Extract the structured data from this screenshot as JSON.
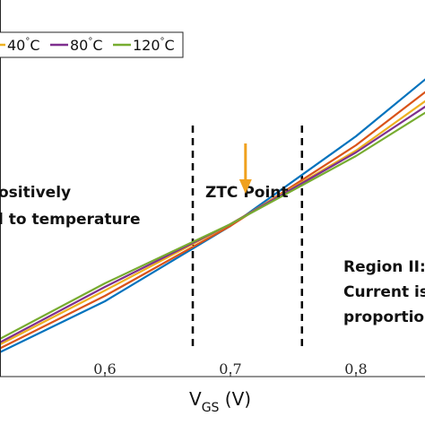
{
  "chart_data": {
    "type": "line",
    "xlabel": "V",
    "xlabel_sub": "GS",
    "xlabel_unit": " (V)",
    "xlim": [
      0.5,
      0.88
    ],
    "ylim": [
      0,
      1
    ],
    "x_ticks": [
      0.6,
      0.7,
      0.8
    ],
    "x_tick_labels": [
      "0.6",
      "0.7",
      "0.8"
    ],
    "grid": false,
    "legend_position": "top",
    "legend": [
      {
        "name": "40",
        "deg": "°",
        "unit": "C",
        "color": "#EDB120"
      },
      {
        "name": "80",
        "deg": "°",
        "unit": "C",
        "color": "#7E2F8E"
      },
      {
        "name": "120",
        "deg": "°",
        "unit": "C",
        "color": "#77AC30"
      }
    ],
    "series": [
      {
        "color": "#0072BD",
        "x": [
          0.5,
          0.6,
          0.7,
          0.8,
          0.88
        ],
        "y": [
          0.04,
          0.21,
          0.42,
          0.67,
          0.9
        ]
      },
      {
        "color": "#D95319",
        "x": [
          0.5,
          0.6,
          0.7,
          0.8,
          0.88
        ],
        "y": [
          0.05,
          0.225,
          0.42,
          0.645,
          0.86
        ]
      },
      {
        "name": "40",
        "color": "#EDB120",
        "x": [
          0.5,
          0.6,
          0.7,
          0.8,
          0.88
        ],
        "y": [
          0.06,
          0.24,
          0.425,
          0.63,
          0.83
        ]
      },
      {
        "name": "80",
        "color": "#7E2F8E",
        "x": [
          0.5,
          0.6,
          0.7,
          0.8,
          0.88
        ],
        "y": [
          0.065,
          0.25,
          0.425,
          0.625,
          0.81
        ]
      },
      {
        "name": "120",
        "color": "#77AC30",
        "x": [
          0.5,
          0.6,
          0.7,
          0.8,
          0.88
        ],
        "y": [
          0.075,
          0.26,
          0.425,
          0.615,
          0.79
        ]
      }
    ],
    "vlines": [
      0.67,
      0.757
    ],
    "annotations": {
      "ztc_label": "ZTC Point",
      "left_line1": "ositively",
      "left_line2": "l to temperature",
      "right_line1": "Region II:",
      "right_line2": "Current is",
      "right_line3": "proportio"
    },
    "arrow": {
      "x": 0.712,
      "y_from": 0.65,
      "y_to": 0.52,
      "color": "#F0A11E"
    }
  }
}
